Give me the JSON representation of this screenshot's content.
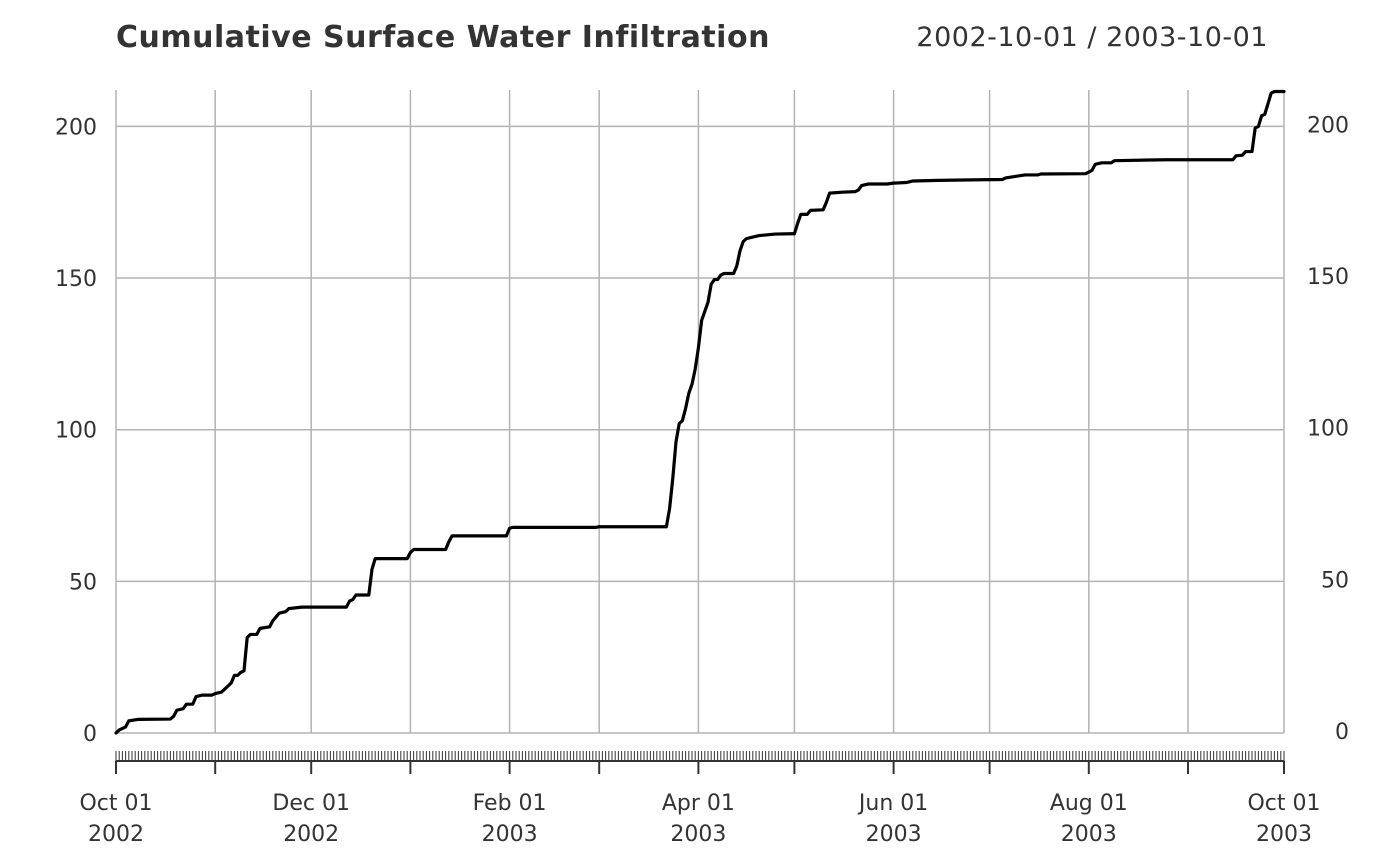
{
  "header": {
    "title": "Cumulative Surface Water Infiltration",
    "date_range": "2002-10-01 / 2003-10-01"
  },
  "colors": {
    "grid": "#b3b3b3",
    "line": "#000000",
    "text": "#333333",
    "axis": "#333333"
  },
  "chart_data": {
    "type": "line",
    "title": "Cumulative Surface Water Infiltration",
    "subtitle": "2002-10-01 / 2003-10-01",
    "xlabel": "",
    "ylabel": "",
    "x_type": "date",
    "xlim": [
      "2002-10-01",
      "2003-10-01"
    ],
    "ylim": [
      0,
      212
    ],
    "yticks": [
      0,
      50,
      100,
      150,
      200
    ],
    "ytick_labels": [
      "0",
      "50",
      "100",
      "150",
      "200"
    ],
    "y_axis_sides": [
      "left",
      "right"
    ],
    "xticks_major": [
      "2002-10-01",
      "2002-12-01",
      "2003-02-01",
      "2003-04-01",
      "2003-06-01",
      "2003-08-01",
      "2003-10-01"
    ],
    "xtick_labels": [
      {
        "line1": "Oct 01",
        "line2": "2002"
      },
      {
        "line1": "Dec 01",
        "line2": "2002"
      },
      {
        "line1": "Feb 01",
        "line2": "2003"
      },
      {
        "line1": "Apr 01",
        "line2": "2003"
      },
      {
        "line1": "Jun 01",
        "line2": "2003"
      },
      {
        "line1": "Aug 01",
        "line2": "2003"
      },
      {
        "line1": "Oct 01",
        "line2": "2003"
      }
    ],
    "xticks_minor": [
      "2002-11-01",
      "2003-01-01",
      "2003-03-01",
      "2003-05-01",
      "2003-07-01",
      "2003-09-01"
    ],
    "grid": true,
    "series": [
      {
        "values": [
          [
            "2002-10-01",
            0
          ],
          [
            "2002-10-02",
            1
          ],
          [
            "2002-10-04",
            2
          ],
          [
            "2002-10-05",
            4
          ],
          [
            "2002-10-08",
            4.5
          ],
          [
            "2002-10-18",
            4.6
          ],
          [
            "2002-10-19",
            5.5
          ],
          [
            "2002-10-20",
            7.5
          ],
          [
            "2002-10-22",
            8
          ],
          [
            "2002-10-23",
            9.5
          ],
          [
            "2002-10-25",
            9.5
          ],
          [
            "2002-10-26",
            12
          ],
          [
            "2002-10-28",
            12.5
          ],
          [
            "2002-10-31",
            12.5
          ],
          [
            "2002-11-01",
            13
          ],
          [
            "2002-11-03",
            13.5
          ],
          [
            "2002-11-05",
            15.5
          ],
          [
            "2002-11-06",
            16.5
          ],
          [
            "2002-11-07",
            19
          ],
          [
            "2002-11-08",
            19
          ],
          [
            "2002-11-09",
            20
          ],
          [
            "2002-11-10",
            20.5
          ],
          [
            "2002-11-11",
            31.5
          ],
          [
            "2002-11-12",
            32.5
          ],
          [
            "2002-11-14",
            32.5
          ],
          [
            "2002-11-15",
            34.5
          ],
          [
            "2002-11-18",
            35
          ],
          [
            "2002-11-19",
            37
          ],
          [
            "2002-11-21",
            39.5
          ],
          [
            "2002-11-23",
            40
          ],
          [
            "2002-11-24",
            41
          ],
          [
            "2002-11-28",
            41.5
          ],
          [
            "2002-12-01",
            41.5
          ],
          [
            "2002-12-12",
            41.5
          ],
          [
            "2002-12-13",
            43.5
          ],
          [
            "2002-12-14",
            44
          ],
          [
            "2002-12-15",
            45.5
          ],
          [
            "2002-12-19",
            45.5
          ],
          [
            "2002-12-20",
            54
          ],
          [
            "2002-12-21",
            57.5
          ],
          [
            "2002-12-31",
            57.5
          ],
          [
            "2003-01-01",
            59.5
          ],
          [
            "2003-01-02",
            60.5
          ],
          [
            "2003-01-12",
            60.5
          ],
          [
            "2003-01-13",
            63
          ],
          [
            "2003-01-14",
            65
          ],
          [
            "2003-01-31",
            65
          ],
          [
            "2003-02-01",
            67.5
          ],
          [
            "2003-02-02",
            67.8
          ],
          [
            "2003-02-28",
            67.8
          ],
          [
            "2003-03-01",
            68
          ],
          [
            "2003-03-22",
            68
          ],
          [
            "2003-03-23",
            74
          ],
          [
            "2003-03-24",
            84
          ],
          [
            "2003-03-25",
            96
          ],
          [
            "2003-03-26",
            102
          ],
          [
            "2003-03-27",
            103
          ],
          [
            "2003-03-28",
            107
          ],
          [
            "2003-03-29",
            112
          ],
          [
            "2003-03-30",
            115
          ],
          [
            "2003-03-31",
            120
          ],
          [
            "2003-04-01",
            127
          ],
          [
            "2003-04-02",
            136
          ],
          [
            "2003-04-04",
            142
          ],
          [
            "2003-04-05",
            148
          ],
          [
            "2003-04-06",
            149.5
          ],
          [
            "2003-04-07",
            149.5
          ],
          [
            "2003-04-08",
            151
          ],
          [
            "2003-04-09",
            151.5
          ],
          [
            "2003-04-12",
            151.5
          ],
          [
            "2003-04-13",
            154
          ],
          [
            "2003-04-14",
            159
          ],
          [
            "2003-04-15",
            162
          ],
          [
            "2003-04-16",
            163
          ],
          [
            "2003-04-18",
            163.5
          ],
          [
            "2003-04-20",
            164
          ],
          [
            "2003-04-23",
            164.3
          ],
          [
            "2003-04-25",
            164.5
          ],
          [
            "2003-04-30",
            164.6
          ],
          [
            "2003-05-01",
            164.6
          ],
          [
            "2003-05-02",
            168
          ],
          [
            "2003-05-03",
            171
          ],
          [
            "2003-05-05",
            171
          ],
          [
            "2003-05-06",
            172.3
          ],
          [
            "2003-05-10",
            172.5
          ],
          [
            "2003-05-11",
            175
          ],
          [
            "2003-05-12",
            178
          ],
          [
            "2003-05-16",
            178.3
          ],
          [
            "2003-05-20",
            178.5
          ],
          [
            "2003-05-21",
            179
          ],
          [
            "2003-05-22",
            180.5
          ],
          [
            "2003-05-24",
            181
          ],
          [
            "2003-05-30",
            181
          ],
          [
            "2003-06-01",
            181.3
          ],
          [
            "2003-06-05",
            181.5
          ],
          [
            "2003-06-07",
            182
          ],
          [
            "2003-06-15",
            182.2
          ],
          [
            "2003-06-28",
            182.4
          ],
          [
            "2003-07-05",
            182.5
          ],
          [
            "2003-07-06",
            183
          ],
          [
            "2003-07-09",
            183.5
          ],
          [
            "2003-07-12",
            184
          ],
          [
            "2003-07-16",
            184
          ],
          [
            "2003-07-17",
            184.3
          ],
          [
            "2003-07-31",
            184.4
          ],
          [
            "2003-08-02",
            185.5
          ],
          [
            "2003-08-03",
            187.5
          ],
          [
            "2003-08-05",
            188
          ],
          [
            "2003-08-08",
            188
          ],
          [
            "2003-08-09",
            188.7
          ],
          [
            "2003-08-25",
            189
          ],
          [
            "2003-09-15",
            189
          ],
          [
            "2003-09-16",
            190.3
          ],
          [
            "2003-09-18",
            190.5
          ],
          [
            "2003-09-19",
            191.7
          ],
          [
            "2003-09-21",
            191.7
          ],
          [
            "2003-09-22",
            199.5
          ],
          [
            "2003-09-23",
            200
          ],
          [
            "2003-09-24",
            203.5
          ],
          [
            "2003-09-25",
            204
          ],
          [
            "2003-09-27",
            211
          ],
          [
            "2003-09-28",
            211.5
          ],
          [
            "2003-10-01",
            211.5
          ]
        ]
      }
    ]
  }
}
